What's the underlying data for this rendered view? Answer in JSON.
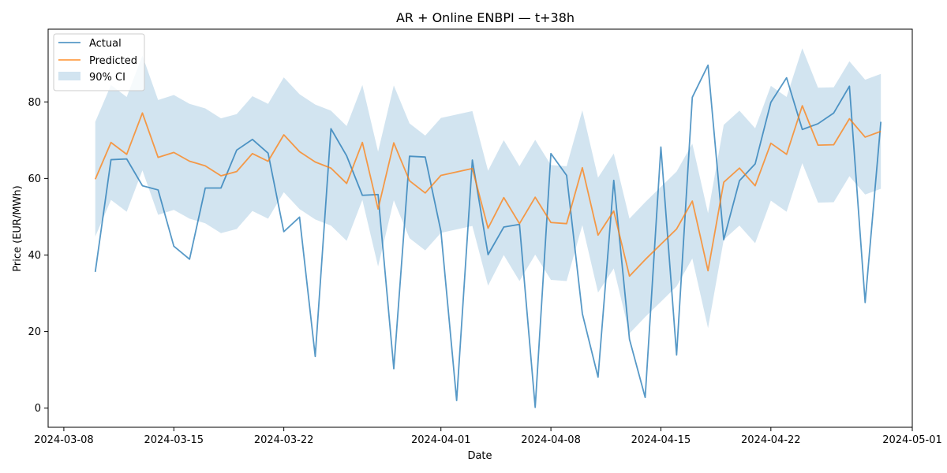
{
  "chart_data": {
    "type": "line",
    "title": "AR + Online ENBPI — t+38h",
    "xlabel": "Date",
    "ylabel": "Price (EUR/MWh)",
    "x_start": "2024-03-10",
    "x": [
      "2024-03-10",
      "2024-03-11",
      "2024-03-12",
      "2024-03-13",
      "2024-03-14",
      "2024-03-15",
      "2024-03-16",
      "2024-03-17",
      "2024-03-18",
      "2024-03-19",
      "2024-03-20",
      "2024-03-21",
      "2024-03-22",
      "2024-03-23",
      "2024-03-24",
      "2024-03-25",
      "2024-03-26",
      "2024-03-27",
      "2024-03-28",
      "2024-03-29",
      "2024-03-30",
      "2024-03-31",
      "2024-04-01",
      "2024-04-02",
      "2024-04-03",
      "2024-04-04",
      "2024-04-05",
      "2024-04-06",
      "2024-04-07",
      "2024-04-08",
      "2024-04-09",
      "2024-04-10",
      "2024-04-11",
      "2024-04-12",
      "2024-04-13",
      "2024-04-14",
      "2024-04-15",
      "2024-04-16",
      "2024-04-17",
      "2024-04-18",
      "2024-04-19",
      "2024-04-20",
      "2024-04-21",
      "2024-04-22",
      "2024-04-23",
      "2024-04-24",
      "2024-04-25",
      "2024-04-26",
      "2024-04-27",
      "2024-04-28",
      "2024-04-29"
    ],
    "xlim": [
      "2024-03-07",
      "2024-05-01"
    ],
    "ylim": [
      -5,
      99
    ],
    "x_ticks": [
      "2024-03-08",
      "2024-03-15",
      "2024-03-22",
      "2024-04-01",
      "2024-04-08",
      "2024-04-15",
      "2024-04-22",
      "2024-05-01"
    ],
    "y_ticks": [
      0,
      20,
      40,
      60,
      80
    ],
    "legend_position": "top-left",
    "series": [
      {
        "name": "Actual",
        "color": "#1f77b4",
        "values": [
          35.6,
          64.9,
          65.1,
          58.1,
          57.0,
          42.3,
          38.9,
          57.5,
          57.5,
          67.4,
          70.2,
          66.6,
          46.1,
          49.9,
          13.5,
          73.0,
          65.9,
          55.6,
          55.8,
          10.3,
          65.8,
          65.6,
          46.2,
          2.0,
          64.8,
          40.1,
          47.3,
          48.0,
          0.2,
          66.5,
          60.8,
          24.7,
          8.1,
          59.5,
          18.0,
          2.8,
          68.2,
          13.9,
          81.2,
          89.6,
          44.0,
          59.4,
          63.8,
          79.9,
          86.3,
          72.8,
          74.3,
          77.1,
          84.1,
          27.6,
          74.8
        ]
      },
      {
        "name": "Predicted",
        "color": "#ff7f0e",
        "values": [
          59.8,
          69.4,
          66.3,
          77.1,
          65.5,
          66.8,
          64.5,
          63.3,
          60.7,
          61.8,
          66.5,
          64.5,
          71.4,
          67.0,
          64.3,
          62.7,
          58.7,
          69.4,
          52.0,
          69.3,
          59.4,
          56.2,
          60.8,
          61.7,
          62.6,
          47.0,
          55.0,
          48.2,
          55.1,
          48.5,
          48.2,
          62.8,
          45.2,
          51.5,
          34.5,
          38.8,
          42.8,
          46.8,
          54.1,
          35.9,
          59.0,
          62.7,
          58.1,
          69.2,
          66.3,
          79.0,
          68.7,
          68.8,
          75.6,
          70.8,
          72.3
        ]
      }
    ],
    "band": {
      "name": "90% CI",
      "color": "#1f77b4",
      "lower": [
        44.8,
        54.4,
        51.3,
        62.1,
        50.5,
        51.8,
        49.5,
        48.3,
        45.7,
        46.8,
        51.5,
        49.5,
        56.4,
        52.0,
        49.3,
        47.7,
        43.7,
        54.4,
        37.0,
        54.3,
        44.4,
        41.2,
        45.8,
        46.7,
        47.6,
        32.0,
        40.0,
        33.2,
        40.1,
        33.5,
        33.2,
        47.8,
        30.2,
        36.5,
        19.5,
        23.8,
        27.8,
        31.8,
        39.1,
        20.9,
        44.0,
        47.7,
        43.1,
        54.2,
        51.3,
        64.0,
        53.7,
        53.8,
        60.6,
        55.8,
        57.3
      ],
      "upper": [
        74.8,
        84.4,
        81.3,
        92.1,
        80.5,
        81.8,
        79.5,
        78.3,
        75.7,
        76.8,
        81.5,
        79.5,
        86.4,
        82.0,
        79.3,
        77.7,
        73.7,
        84.4,
        67.0,
        84.3,
        74.4,
        71.2,
        75.8,
        76.7,
        77.6,
        62.0,
        70.0,
        63.2,
        70.1,
        63.5,
        63.2,
        77.8,
        60.2,
        66.5,
        49.5,
        53.8,
        57.8,
        61.8,
        69.1,
        50.9,
        74.0,
        77.7,
        73.1,
        84.2,
        81.3,
        94.0,
        83.7,
        83.8,
        90.6,
        85.8,
        87.3
      ]
    }
  }
}
